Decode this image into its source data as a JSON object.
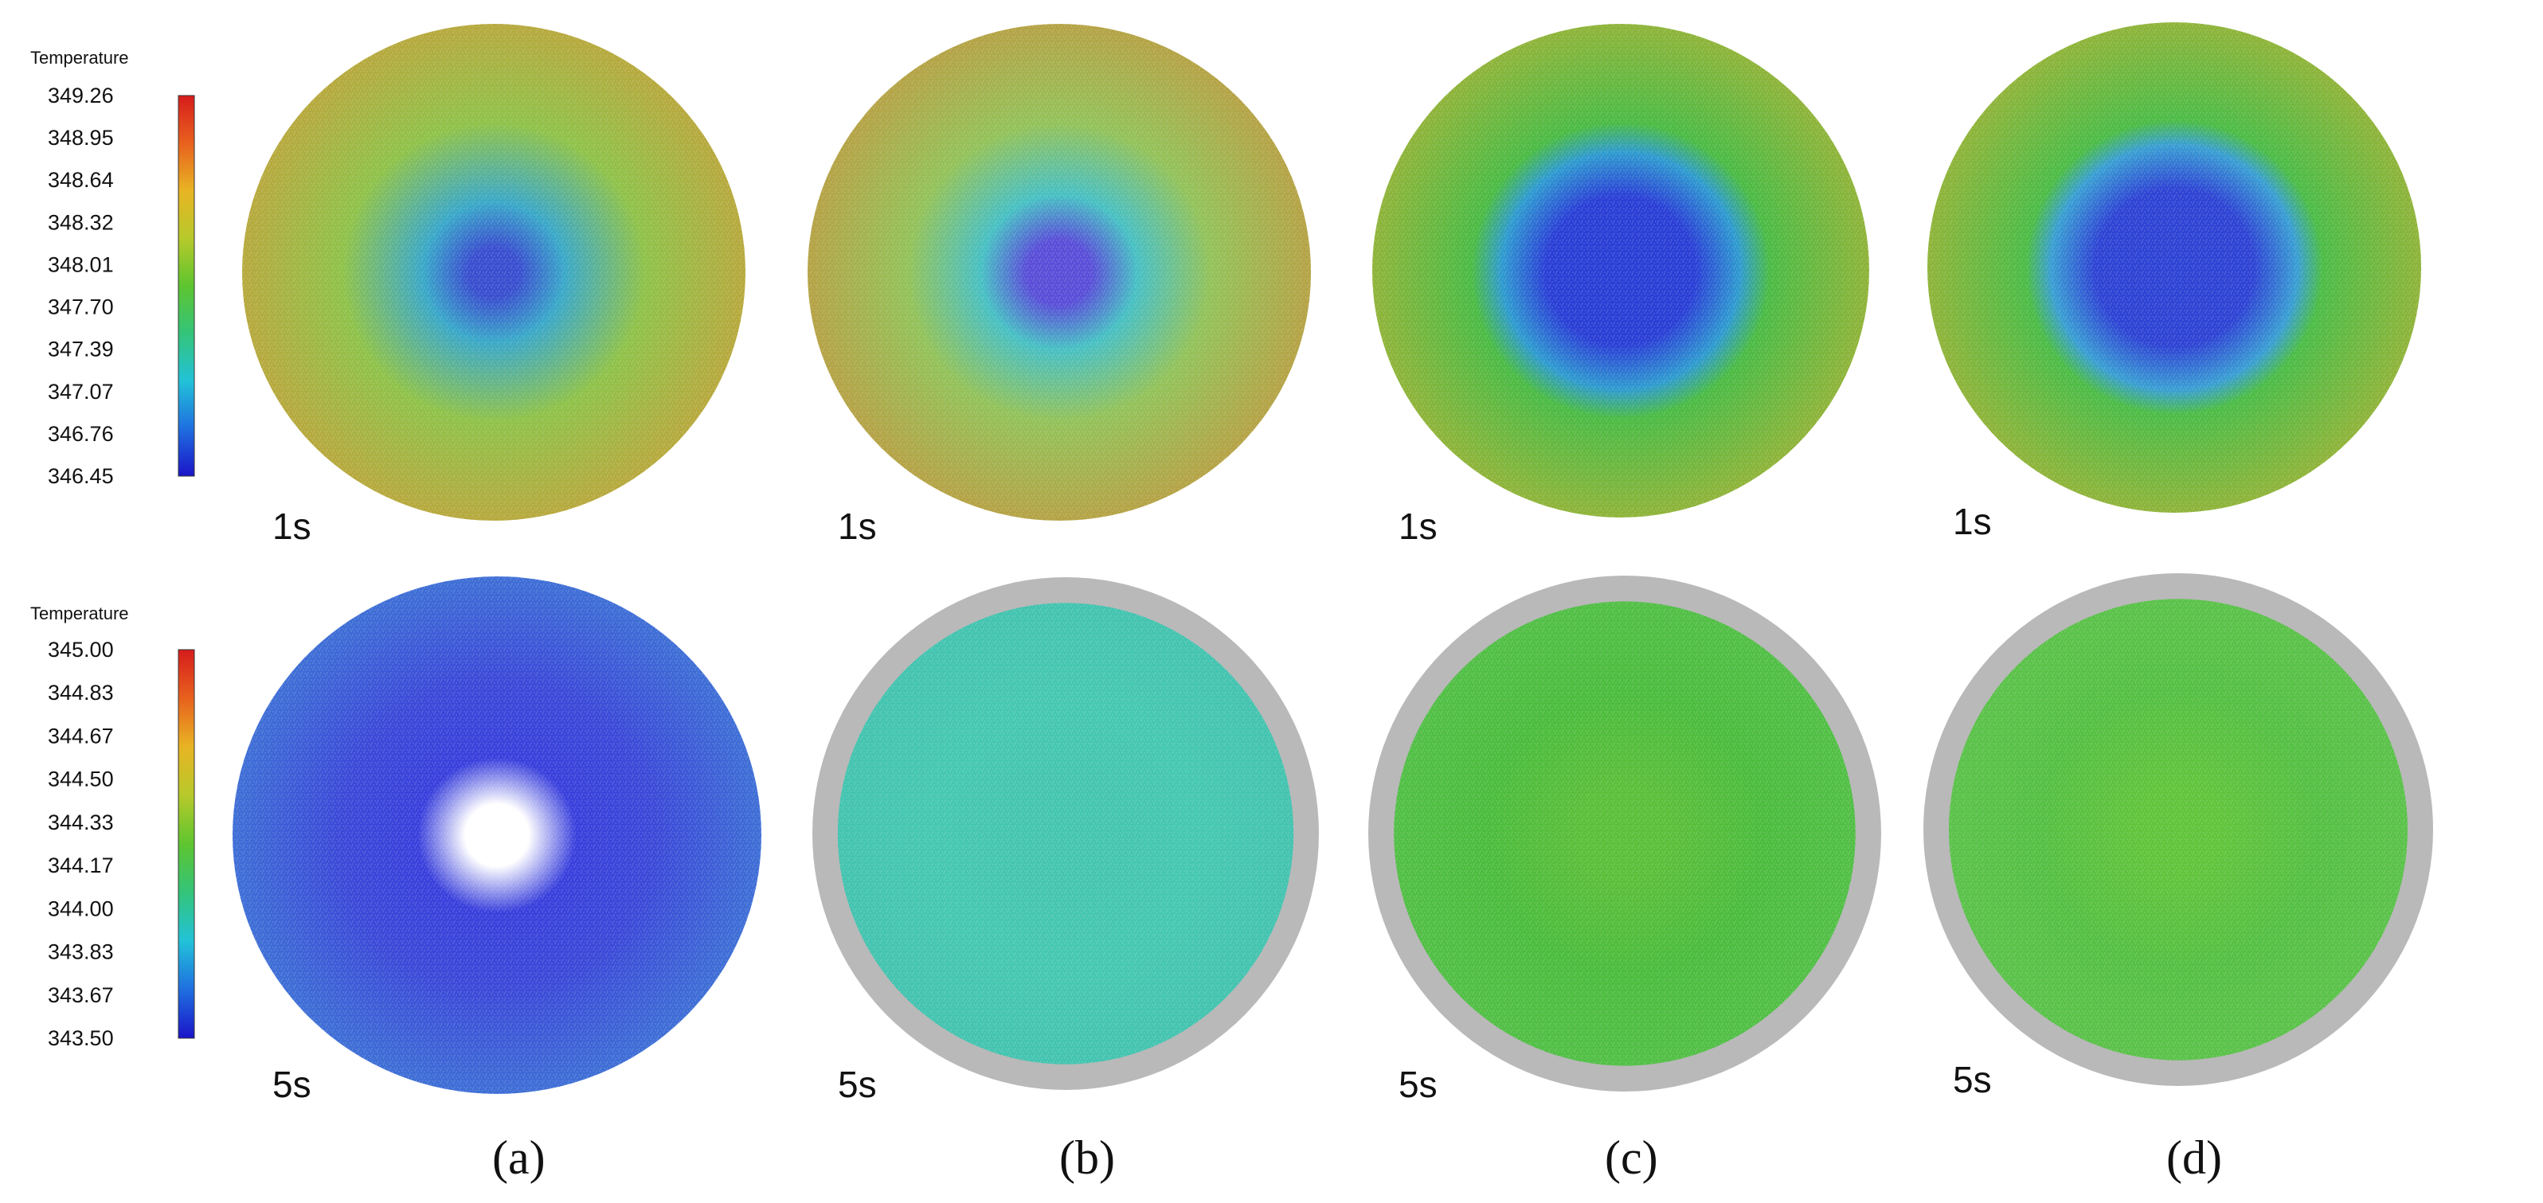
{
  "legends": [
    {
      "title": "Temperature",
      "ticks": [
        "349.26",
        "348.95",
        "348.64",
        "348.32",
        "348.01",
        "347.70",
        "347.39",
        "347.07",
        "346.76",
        "346.45"
      ]
    },
    {
      "title": "Temperature",
      "ticks": [
        "345.00",
        "344.83",
        "344.67",
        "344.50",
        "344.33",
        "344.17",
        "344.00",
        "343.83",
        "343.67",
        "343.50"
      ]
    }
  ],
  "colormap": [
    "#1b14c8",
    "#1f6fe0",
    "#22c2d8",
    "#33c47a",
    "#5ec52f",
    "#b7c92b",
    "#e8b423",
    "#e8611e",
    "#d61c1c"
  ],
  "rows": [
    {
      "time_label": "1s",
      "panels": [
        {
          "edge_color": "#b7a93e",
          "mid_color": "#8fc24a",
          "center_color": "#3aa8c9",
          "core_color": "#3a4fcf",
          "core_size": 0.1
        },
        {
          "edge_color": "#b5a346",
          "mid_color": "#93c25a",
          "center_color": "#48c0c4",
          "core_color": "#5a4fd8",
          "core_size": 0.13
        },
        {
          "edge_color": "#8fb43a",
          "mid_color": "#4bbb45",
          "center_color": "#2f9bd0",
          "core_color": "#2b3fd6",
          "core_size": 0.3
        },
        {
          "edge_color": "#8fb43a",
          "mid_color": "#4cbc47",
          "center_color": "#3a9fd3",
          "core_color": "#2f44d4",
          "core_size": 0.32
        }
      ]
    },
    {
      "time_label": "5s",
      "panels": [
        {
          "edge_color": "#3f6fd6",
          "mid_color": "#3c4ad8",
          "center_color": "#3a40dc",
          "core_color": "#ffffff",
          "core_size": 0.12
        },
        {
          "edge_color": "#44c4b0",
          "mid_color": "#46c8b0",
          "center_color": "#45c6ae",
          "core_color": "#48c9b0",
          "core_size": 0.0
        },
        {
          "edge_color": "#52bf46",
          "mid_color": "#4cbc3e",
          "center_color": "#5cbf3a",
          "core_color": "#66c23b",
          "core_size": 0.0
        },
        {
          "edge_color": "#5bc24a",
          "mid_color": "#55c044",
          "center_color": "#62c43c",
          "core_color": "#6ec640",
          "core_size": 0.0
        }
      ]
    }
  ],
  "panel_labels": [
    "(a)",
    "(b)",
    "(c)",
    "(d)"
  ]
}
